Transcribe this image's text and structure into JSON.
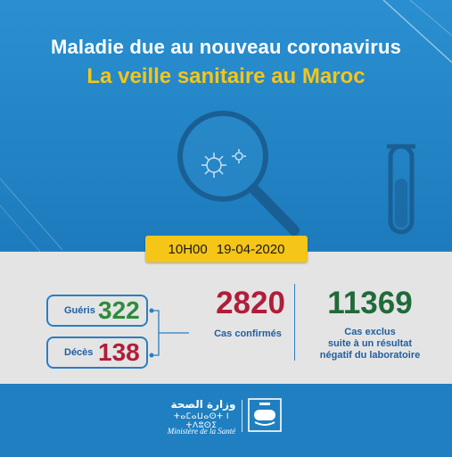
{
  "header": {
    "title": "Maladie due au nouveau coronavirus",
    "subtitle": "La veille sanitaire au Maroc"
  },
  "date": {
    "time": "10H00",
    "day": "19-04-2020"
  },
  "stats": {
    "recovered": {
      "label": "Guéris",
      "value": "322"
    },
    "deaths": {
      "label": "Décès",
      "value": "138"
    },
    "confirmed": {
      "value": "2820",
      "label": "Cas confirmés"
    },
    "excluded": {
      "value": "11369",
      "label_lines": [
        "Cas exclus",
        "suite à un résultat",
        "négatif du laboratoire"
      ]
    }
  },
  "footer": {
    "ministry_arabic": "وزارة الصحة",
    "ministry_tifinagh": "ⵜⴰⵎⴰⵡⴰⵙⵜ ⵏ ⵜⴷⵓⵙⵉ",
    "ministry_french": "Ministère de la Santé"
  },
  "colors": {
    "background_blue": "#1f7fc0",
    "title_yellow": "#f5c518",
    "recovered_green": "#2e8b3a",
    "death_red": "#b01d3a",
    "excluded_green": "#1f6b3a",
    "band_gray": "#e4e4e4"
  }
}
